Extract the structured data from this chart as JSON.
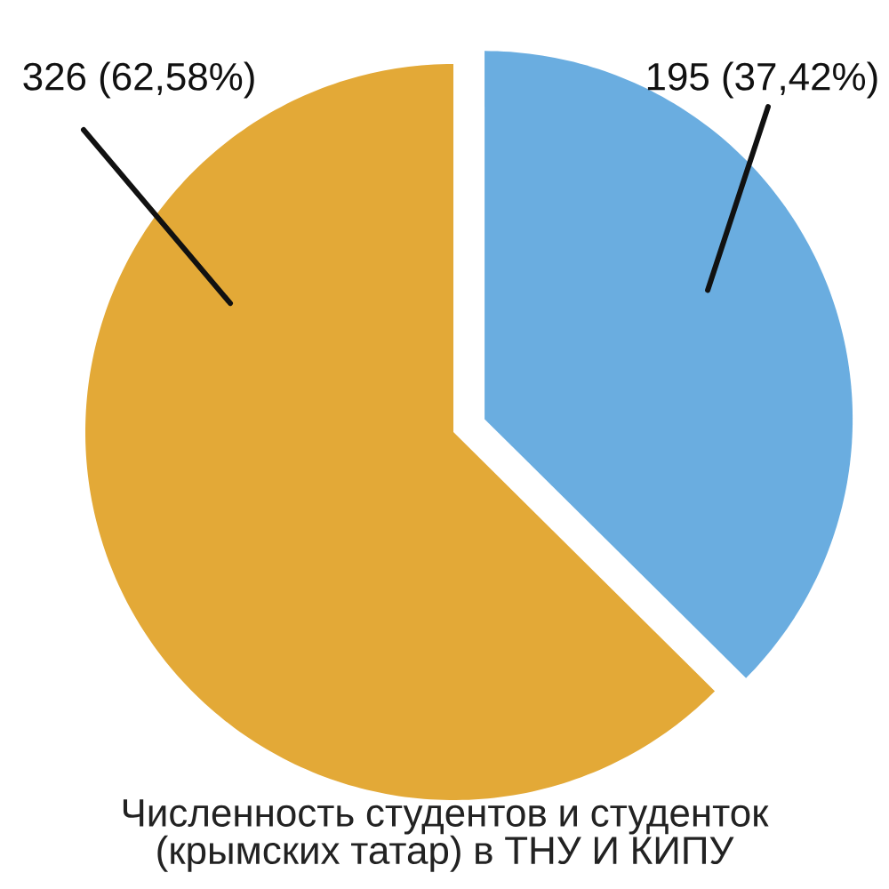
{
  "chart_data": {
    "type": "pie",
    "title": "Численность студентов и студенток (крымских татар) в ТНУ И КИПУ",
    "categories": [
      null,
      null
    ],
    "values": [
      195,
      326
    ],
    "colors": [
      "#6aade0",
      "#e3a937"
    ],
    "value_labels": [
      "195 (37,42%)",
      "326 (62,58%)"
    ]
  }
}
